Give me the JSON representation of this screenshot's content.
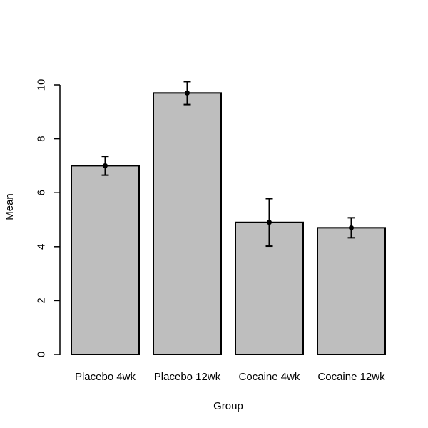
{
  "chart_data": {
    "type": "bar",
    "title": "",
    "xlabel": "Group",
    "ylabel": "Mean",
    "categories": [
      "Placebo 4wk",
      "Placebo 12wk",
      "Cocaine 4wk",
      "Cocaine 12wk"
    ],
    "values": [
      7.0,
      9.7,
      4.9,
      4.7
    ],
    "error_bars": [
      {
        "low": 6.65,
        "high": 7.35
      },
      {
        "low": 9.27,
        "high": 10.12
      },
      {
        "low": 4.02,
        "high": 5.78
      },
      {
        "low": 4.33,
        "high": 5.07
      }
    ],
    "ylim": [
      0,
      10
    ],
    "yticks": [
      "0",
      "2",
      "4",
      "6",
      "8",
      "10"
    ],
    "bar_color": "#bebebe",
    "grid": false,
    "legend": "none"
  }
}
